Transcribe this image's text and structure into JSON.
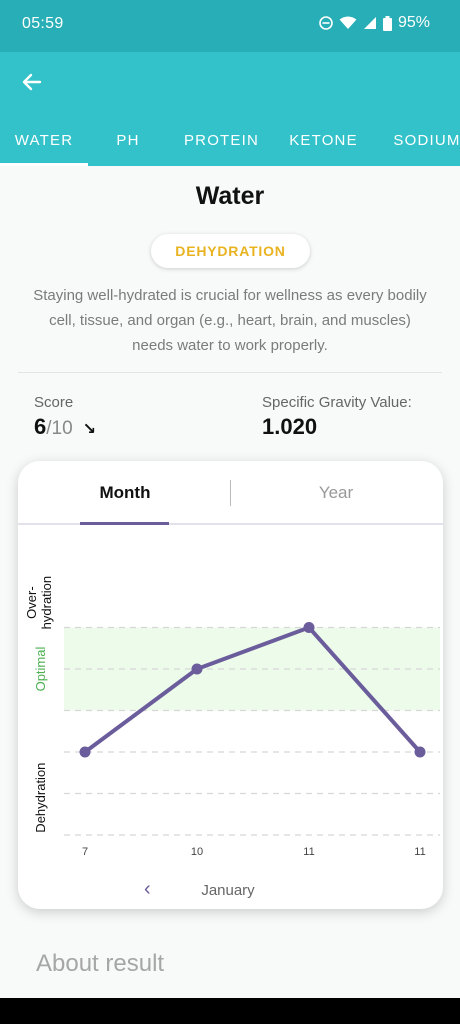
{
  "status": {
    "time": "05:59",
    "battery": "95%"
  },
  "tabs": [
    {
      "label": "WATER",
      "active": true
    },
    {
      "label": "PH"
    },
    {
      "label": "PROTEIN"
    },
    {
      "label": "KETONE"
    },
    {
      "label": "SODIUM"
    }
  ],
  "page": {
    "title": "Water",
    "status_badge": "DEHYDRATION",
    "description": "Staying well-hydrated is crucial for wellness as every bodily cell, tissue, and organ (e.g., heart, brain, and muscles) needs water to work properly."
  },
  "score": {
    "label": "Score",
    "value": "6",
    "max": "/10",
    "trend_icon": "arrow-down-right-icon"
  },
  "specific_gravity": {
    "label": "Specific Gravity Value:",
    "value": "1.020"
  },
  "chart": {
    "segment_month": "Month",
    "segment_year": "Year",
    "nav_label": "January",
    "colors": {
      "line": "#6b5c9b",
      "optimal_band": "#ecfbea",
      "optimal_text": "#4caf50"
    }
  },
  "chart_data": {
    "type": "line",
    "x": [
      "7",
      "10",
      "11",
      "11"
    ],
    "y_levels": [
      "Dehydration",
      "Optimal",
      "Over-hydration"
    ],
    "values": [
      2,
      4,
      5,
      2
    ],
    "ylim": [
      0,
      6
    ],
    "grid": true
  },
  "about": {
    "title": "About result"
  }
}
